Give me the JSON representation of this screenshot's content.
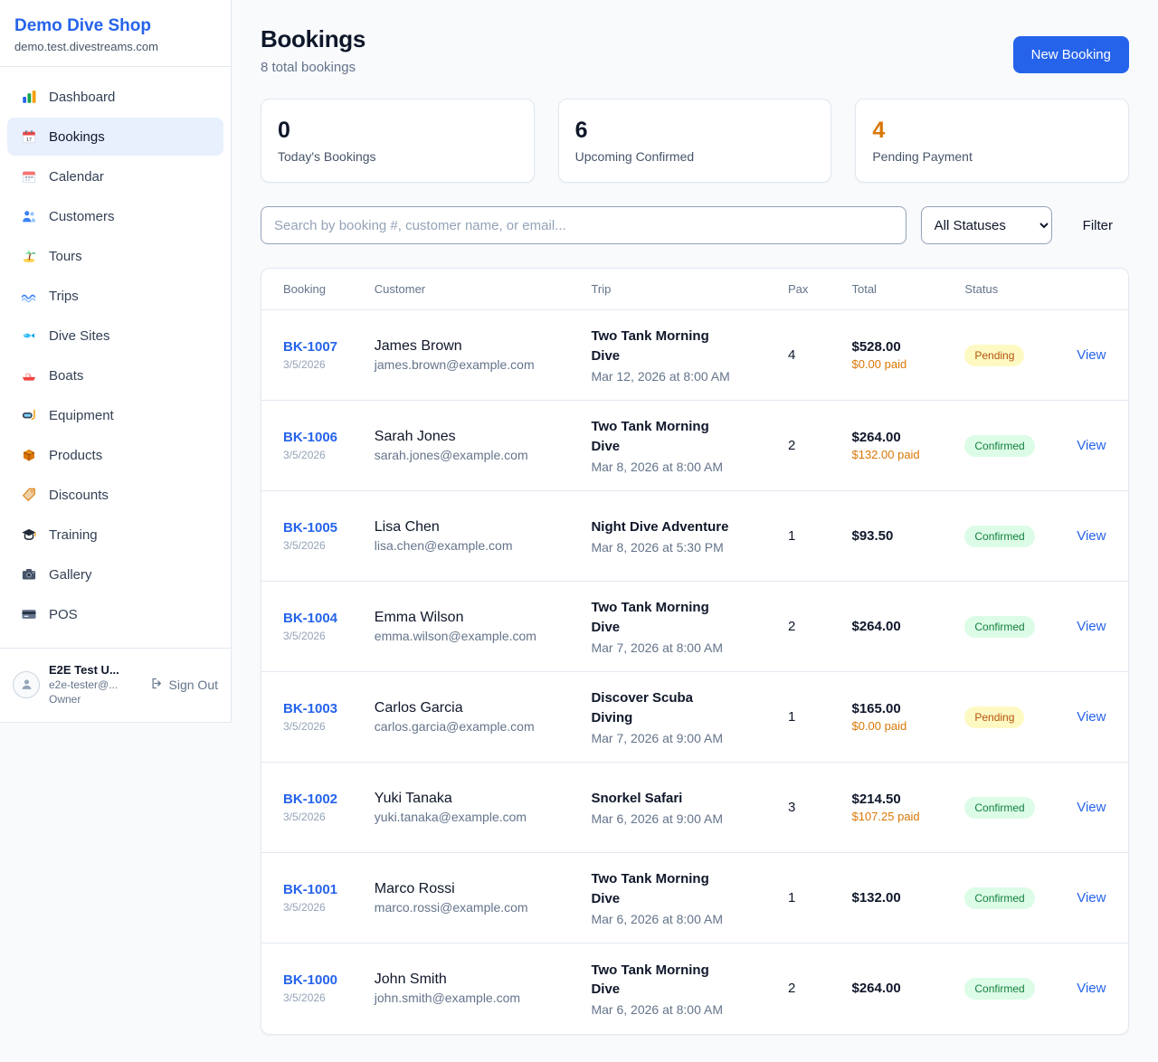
{
  "colors": {
    "brand_blue": "#2563eb",
    "warning_orange": "#d97706",
    "pending_bg": "#fef9c3",
    "pending_text": "#b45309",
    "confirmed_bg": "#dcfce7",
    "confirmed_text": "#15803d"
  },
  "sidebar": {
    "brand": {
      "name": "Demo Dive Shop",
      "domain": "demo.test.divestreams.com"
    },
    "items": [
      {
        "label": "Dashboard",
        "icon": "bar-chart-icon",
        "active": false
      },
      {
        "label": "Bookings",
        "icon": "calendar-icon",
        "active": true
      },
      {
        "label": "Calendar",
        "icon": "calendar-month-icon",
        "active": false
      },
      {
        "label": "Customers",
        "icon": "users-icon",
        "active": false
      },
      {
        "label": "Tours",
        "icon": "island-icon",
        "active": false
      },
      {
        "label": "Trips",
        "icon": "wave-icon",
        "active": false
      },
      {
        "label": "Dive Sites",
        "icon": "fish-icon",
        "active": false
      },
      {
        "label": "Boats",
        "icon": "boat-icon",
        "active": false
      },
      {
        "label": "Equipment",
        "icon": "dive-mask-icon",
        "active": false
      },
      {
        "label": "Products",
        "icon": "package-icon",
        "active": false
      },
      {
        "label": "Discounts",
        "icon": "tag-icon",
        "active": false
      },
      {
        "label": "Training",
        "icon": "graduation-cap-icon",
        "active": false
      },
      {
        "label": "Gallery",
        "icon": "camera-icon",
        "active": false
      },
      {
        "label": "POS",
        "icon": "credit-card-icon",
        "active": false
      }
    ],
    "user": {
      "name": "E2E Test U...",
      "email": "e2e-tester@...",
      "role": "Owner",
      "sign_out_label": "Sign Out"
    }
  },
  "header": {
    "title": "Bookings",
    "subtitle": "8 total bookings",
    "new_booking_label": "New Booking"
  },
  "stats": [
    {
      "value": "0",
      "label": "Today's Bookings"
    },
    {
      "value": "6",
      "label": "Upcoming Confirmed"
    },
    {
      "value": "4",
      "label": "Pending Payment"
    }
  ],
  "filters": {
    "search_placeholder": "Search by booking #, customer name, or email...",
    "status_selected": "All Statuses",
    "filter_label": "Filter"
  },
  "table": {
    "headers": [
      "Booking",
      "Customer",
      "Trip",
      "Pax",
      "Total",
      "Status"
    ],
    "view_label": "View",
    "rows": [
      {
        "booking_id": "BK-1007",
        "booking_date": "3/5/2026",
        "customer_name": "James Brown",
        "customer_email": "james.brown@example.com",
        "trip_name": "Two Tank Morning Dive",
        "trip_time": "Mar 12, 2026 at 8:00 AM",
        "pax": "4",
        "total": "$528.00",
        "paid": "$0.00 paid",
        "status": "Pending"
      },
      {
        "booking_id": "BK-1006",
        "booking_date": "3/5/2026",
        "customer_name": "Sarah Jones",
        "customer_email": "sarah.jones@example.com",
        "trip_name": "Two Tank Morning Dive",
        "trip_time": "Mar 8, 2026 at 8:00 AM",
        "pax": "2",
        "total": "$264.00",
        "paid": "$132.00 paid",
        "status": "Confirmed"
      },
      {
        "booking_id": "BK-1005",
        "booking_date": "3/5/2026",
        "customer_name": "Lisa Chen",
        "customer_email": "lisa.chen@example.com",
        "trip_name": "Night Dive Adventure",
        "trip_time": "Mar 8, 2026 at 5:30 PM",
        "pax": "1",
        "total": "$93.50",
        "paid": "",
        "status": "Confirmed"
      },
      {
        "booking_id": "BK-1004",
        "booking_date": "3/5/2026",
        "customer_name": "Emma Wilson",
        "customer_email": "emma.wilson@example.com",
        "trip_name": "Two Tank Morning Dive",
        "trip_time": "Mar 7, 2026 at 8:00 AM",
        "pax": "2",
        "total": "$264.00",
        "paid": "",
        "status": "Confirmed"
      },
      {
        "booking_id": "BK-1003",
        "booking_date": "3/5/2026",
        "customer_name": "Carlos Garcia",
        "customer_email": "carlos.garcia@example.com",
        "trip_name": "Discover Scuba Diving",
        "trip_time": "Mar 7, 2026 at 9:00 AM",
        "pax": "1",
        "total": "$165.00",
        "paid": "$0.00 paid",
        "status": "Pending"
      },
      {
        "booking_id": "BK-1002",
        "booking_date": "3/5/2026",
        "customer_name": "Yuki Tanaka",
        "customer_email": "yuki.tanaka@example.com",
        "trip_name": "Snorkel Safari",
        "trip_time": "Mar 6, 2026 at 9:00 AM",
        "pax": "3",
        "total": "$214.50",
        "paid": "$107.25 paid",
        "status": "Confirmed"
      },
      {
        "booking_id": "BK-1001",
        "booking_date": "3/5/2026",
        "customer_name": "Marco Rossi",
        "customer_email": "marco.rossi@example.com",
        "trip_name": "Two Tank Morning Dive",
        "trip_time": "Mar 6, 2026 at 8:00 AM",
        "pax": "1",
        "total": "$132.00",
        "paid": "",
        "status": "Confirmed"
      },
      {
        "booking_id": "BK-1000",
        "booking_date": "3/5/2026",
        "customer_name": "John Smith",
        "customer_email": "john.smith@example.com",
        "trip_name": "Two Tank Morning Dive",
        "trip_time": "Mar 6, 2026 at 8:00 AM",
        "pax": "2",
        "total": "$264.00",
        "paid": "",
        "status": "Confirmed"
      }
    ]
  }
}
